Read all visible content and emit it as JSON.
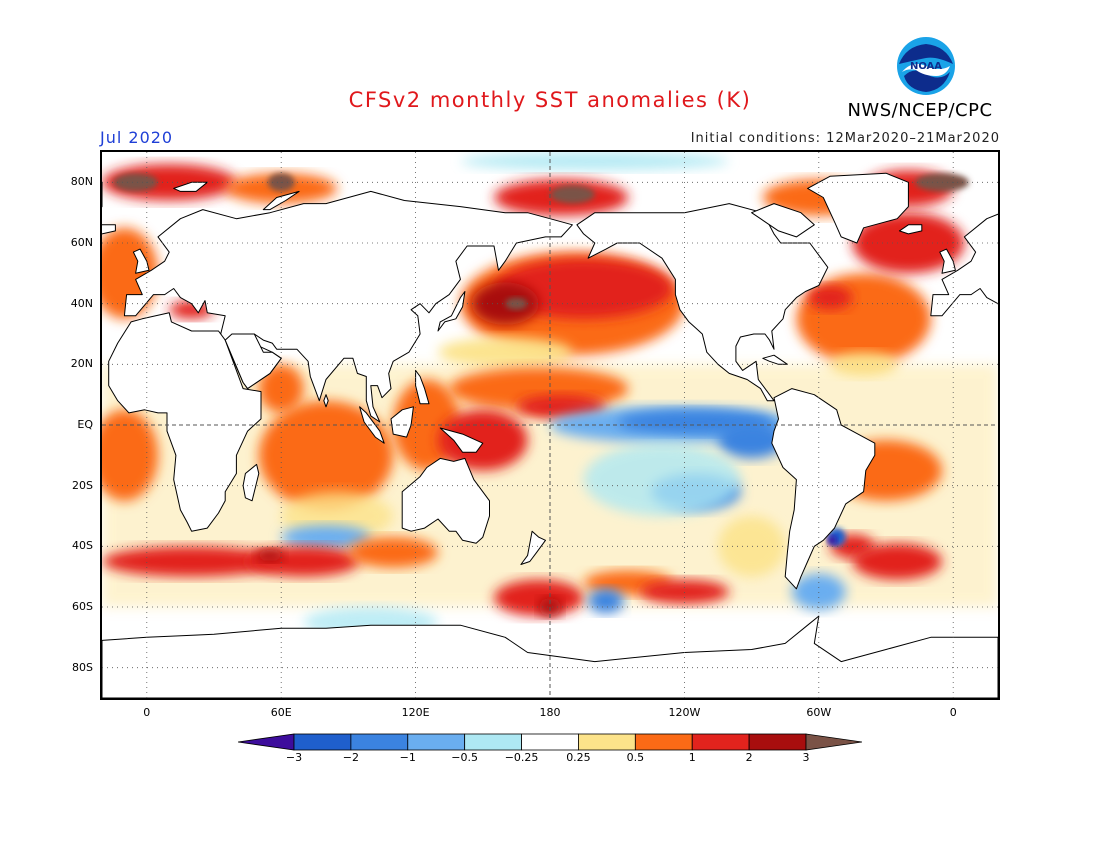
{
  "header": {
    "title": "CFSv2 monthly SST anomalies (K)",
    "month": "Jul 2020",
    "initial_conditions": "Initial conditions: 12Mar2020–21Mar2020",
    "agency": "NWS/NCEP/CPC",
    "logo_text": "NOAA"
  },
  "map": {
    "lat_labels": [
      "80N",
      "60N",
      "40N",
      "20N",
      "EQ",
      "20S",
      "40S",
      "60S",
      "80S"
    ],
    "lat_values": [
      80,
      60,
      40,
      20,
      0,
      -20,
      -40,
      -60,
      -80
    ],
    "lon_labels": [
      "0",
      "60E",
      "120E",
      "180",
      "120W",
      "60W",
      "0"
    ],
    "lon_values": [
      0,
      60,
      120,
      180,
      240,
      300,
      360
    ],
    "lon_range": [
      -20,
      380
    ],
    "lat_range": [
      -90,
      90
    ],
    "land_color": "#ffffff",
    "coast_color": "#000000"
  },
  "colorbar": {
    "tick_labels": [
      "-3",
      "-2",
      "-1",
      "-0.5",
      "-0.25",
      "0.25",
      "0.5",
      "1",
      "2",
      "3"
    ],
    "colors": [
      "#3d0d9c",
      "#1f5fcc",
      "#3b83e0",
      "#6aaef0",
      "#aee8f3",
      "#ffffff",
      "#fce38a",
      "#fb6a16",
      "#e2231d",
      "#a80e0e",
      "#7a5246"
    ]
  }
}
